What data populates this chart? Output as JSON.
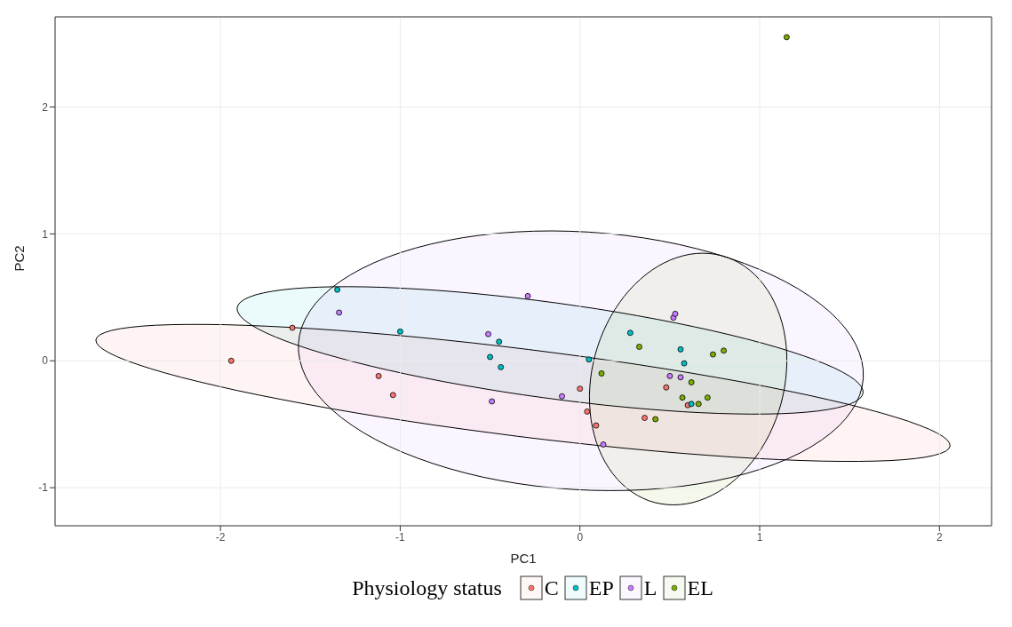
{
  "chart_data": {
    "type": "scatter",
    "xlabel": "PC1",
    "ylabel": "PC2",
    "legend_title": "Physiology status",
    "legend": "bottom",
    "grid": true,
    "marker": "circle",
    "xlim": [
      -2.92,
      2.29
    ],
    "ylim": [
      -1.3,
      2.71
    ],
    "xticks": [
      -2,
      -1,
      0,
      1,
      2
    ],
    "yticks": [
      -1,
      0,
      1,
      2
    ],
    "series": [
      {
        "name": "C",
        "color": "#f8766d",
        "x": [
          -1.94,
          -1.6,
          -1.12,
          -1.04,
          0.0,
          0.04,
          0.09,
          0.36,
          0.48,
          0.6
        ],
        "values": [
          0.0,
          0.26,
          -0.12,
          -0.27,
          -0.22,
          -0.4,
          -0.51,
          -0.45,
          -0.21,
          -0.35
        ]
      },
      {
        "name": "EP",
        "color": "#00bfc4",
        "x": [
          -1.35,
          -1.0,
          -0.5,
          -0.44,
          -0.45,
          0.05,
          0.28,
          0.56,
          0.58,
          0.62
        ],
        "values": [
          0.56,
          0.23,
          0.03,
          -0.05,
          0.15,
          0.01,
          0.22,
          0.09,
          -0.02,
          -0.34
        ]
      },
      {
        "name": "L",
        "color": "#c77cff",
        "x": [
          -1.34,
          -0.29,
          -0.51,
          -0.49,
          -0.1,
          0.13,
          0.52,
          0.53,
          0.5,
          0.56
        ],
        "values": [
          0.38,
          0.51,
          0.21,
          -0.32,
          -0.28,
          -0.66,
          0.34,
          0.37,
          -0.12,
          -0.13
        ]
      },
      {
        "name": "EL",
        "color": "#7cae00",
        "x": [
          1.15,
          0.12,
          0.33,
          0.74,
          0.8,
          0.62,
          0.57,
          0.66,
          0.71,
          0.42
        ],
        "values": [
          2.55,
          -0.1,
          0.11,
          0.05,
          0.08,
          -0.17,
          -0.29,
          -0.34,
          -0.29,
          -0.46
        ]
      }
    ]
  }
}
